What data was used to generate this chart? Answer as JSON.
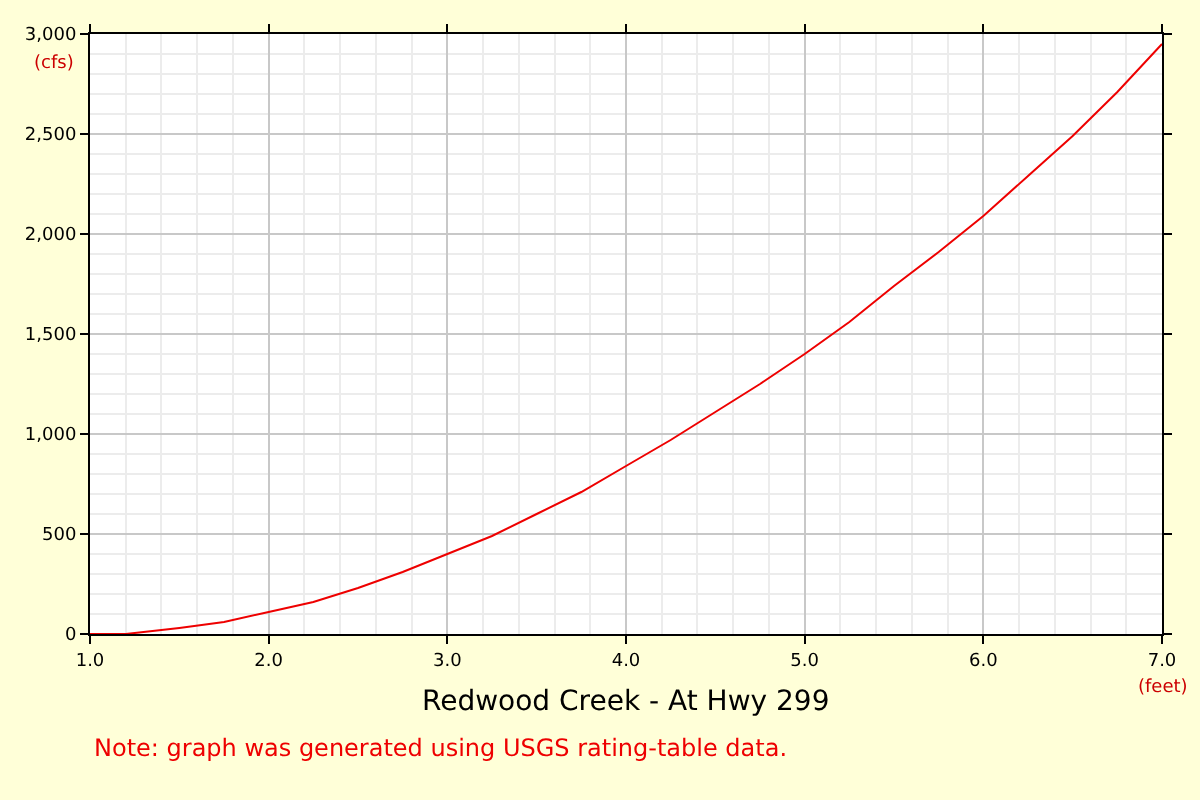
{
  "chart_data": {
    "type": "line",
    "title": "Redwood Creek - At Hwy 299",
    "xlabel": "(feet)",
    "ylabel": "(cfs)",
    "annotations": [
      "Note: graph was generated using USGS rating-table data."
    ],
    "x": [
      1.0,
      1.2,
      1.5,
      1.75,
      2.0,
      2.25,
      2.5,
      2.75,
      3.0,
      3.25,
      3.5,
      3.75,
      4.0,
      4.25,
      4.5,
      4.75,
      5.0,
      5.25,
      5.5,
      5.75,
      6.0,
      6.25,
      6.5,
      6.75,
      7.0
    ],
    "series": [
      {
        "color": "#ee0000",
        "values": [
          0,
          0,
          30,
          60,
          110,
          160,
          230,
          310,
          400,
          490,
          600,
          710,
          840,
          970,
          1110,
          1250,
          1400,
          1560,
          1740,
          1910,
          2090,
          2290,
          2490,
          2710,
          2950
        ]
      }
    ],
    "xlim": [
      1.0,
      7.0
    ],
    "ylim": [
      0,
      3000
    ],
    "xticks": [
      {
        "value": 1,
        "label": "1.0"
      },
      {
        "value": 2,
        "label": "2.0"
      },
      {
        "value": 3,
        "label": "3.0"
      },
      {
        "value": 4,
        "label": "4.0"
      },
      {
        "value": 5,
        "label": "5.0"
      },
      {
        "value": 6,
        "label": "6.0"
      },
      {
        "value": 7,
        "label": "7.0"
      }
    ],
    "yticks": [
      0,
      500,
      {
        "value": 1000,
        "label": "1,000"
      },
      {
        "value": 1500,
        "label": "1,500"
      },
      {
        "value": 2000,
        "label": "2,000"
      },
      {
        "value": 2500,
        "label": "2,500"
      },
      {
        "value": 3000,
        "label": "3,000"
      }
    ],
    "grid": true,
    "marker": "none",
    "line_style": "solid",
    "legend": false
  }
}
